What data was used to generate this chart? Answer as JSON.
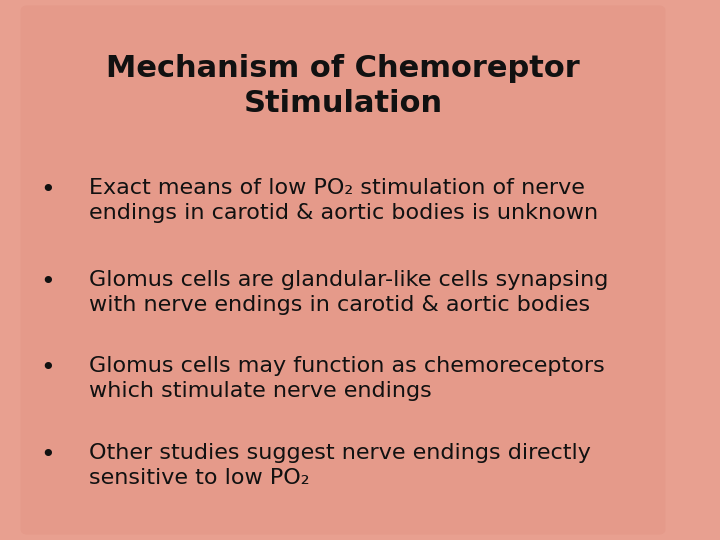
{
  "title_line1": "Mechanism of Chemoreptor",
  "title_line2": "Stimulation",
  "bullets": [
    {
      "line1": "Exact means of low PO₂ stimulation of nerve",
      "line2": "endings in carotid & aortic bodies is unknown"
    },
    {
      "line1": "Glomus cells are glandular-like cells synapsing",
      "line2": "with nerve endings in carotid & aortic bodies"
    },
    {
      "line1": "Glomus cells may function as chemoreceptors",
      "line2": "which stimulate nerve endings"
    },
    {
      "line1": "Other studies suggest nerve endings directly",
      "line2": "sensitive to low PO₂"
    }
  ],
  "bg_color": "#e8a090",
  "text_color": "#111111",
  "title_fontsize": 22,
  "bullet_fontsize": 16,
  "figsize": [
    7.2,
    5.4
  ],
  "dpi": 100
}
